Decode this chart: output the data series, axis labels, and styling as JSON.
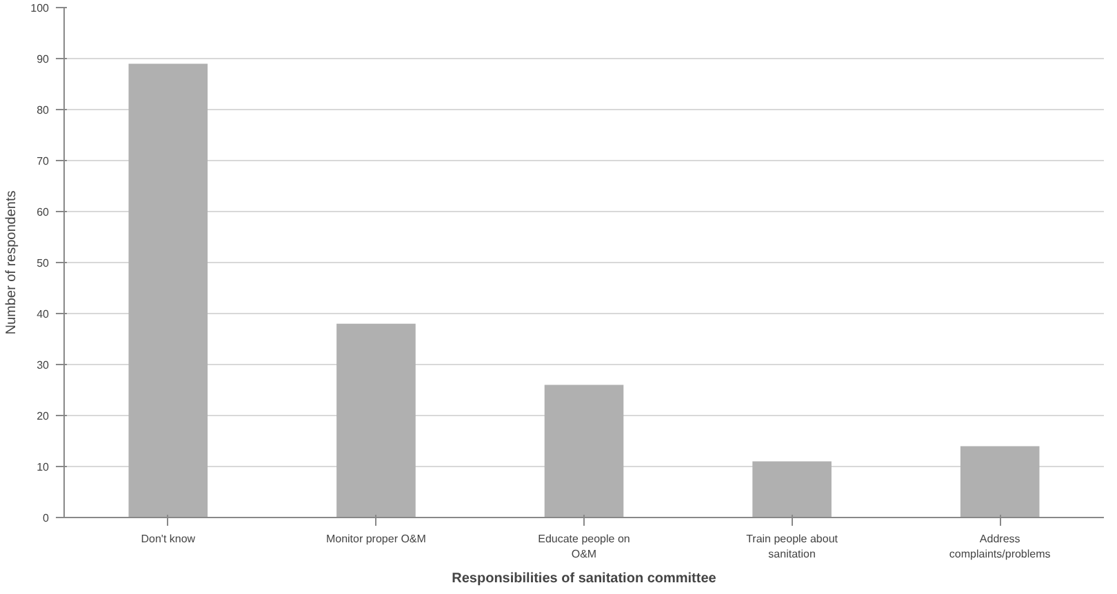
{
  "chart_data": {
    "type": "bar",
    "xlabel": "Responsibilities of sanitation committee",
    "ylabel": "Number of respondents",
    "categories": [
      "Don't know",
      "Monitor proper O&M",
      "Educate people on O&M",
      "Train people about sanitation",
      "Address complaints/problems"
    ],
    "values": [
      89,
      38,
      26,
      11,
      14
    ],
    "color": "#b0b0b0",
    "ylim": [
      0,
      100
    ],
    "yticks": [
      0,
      10,
      20,
      30,
      40,
      50,
      60,
      70,
      80,
      90,
      100
    ],
    "grid": "y"
  }
}
